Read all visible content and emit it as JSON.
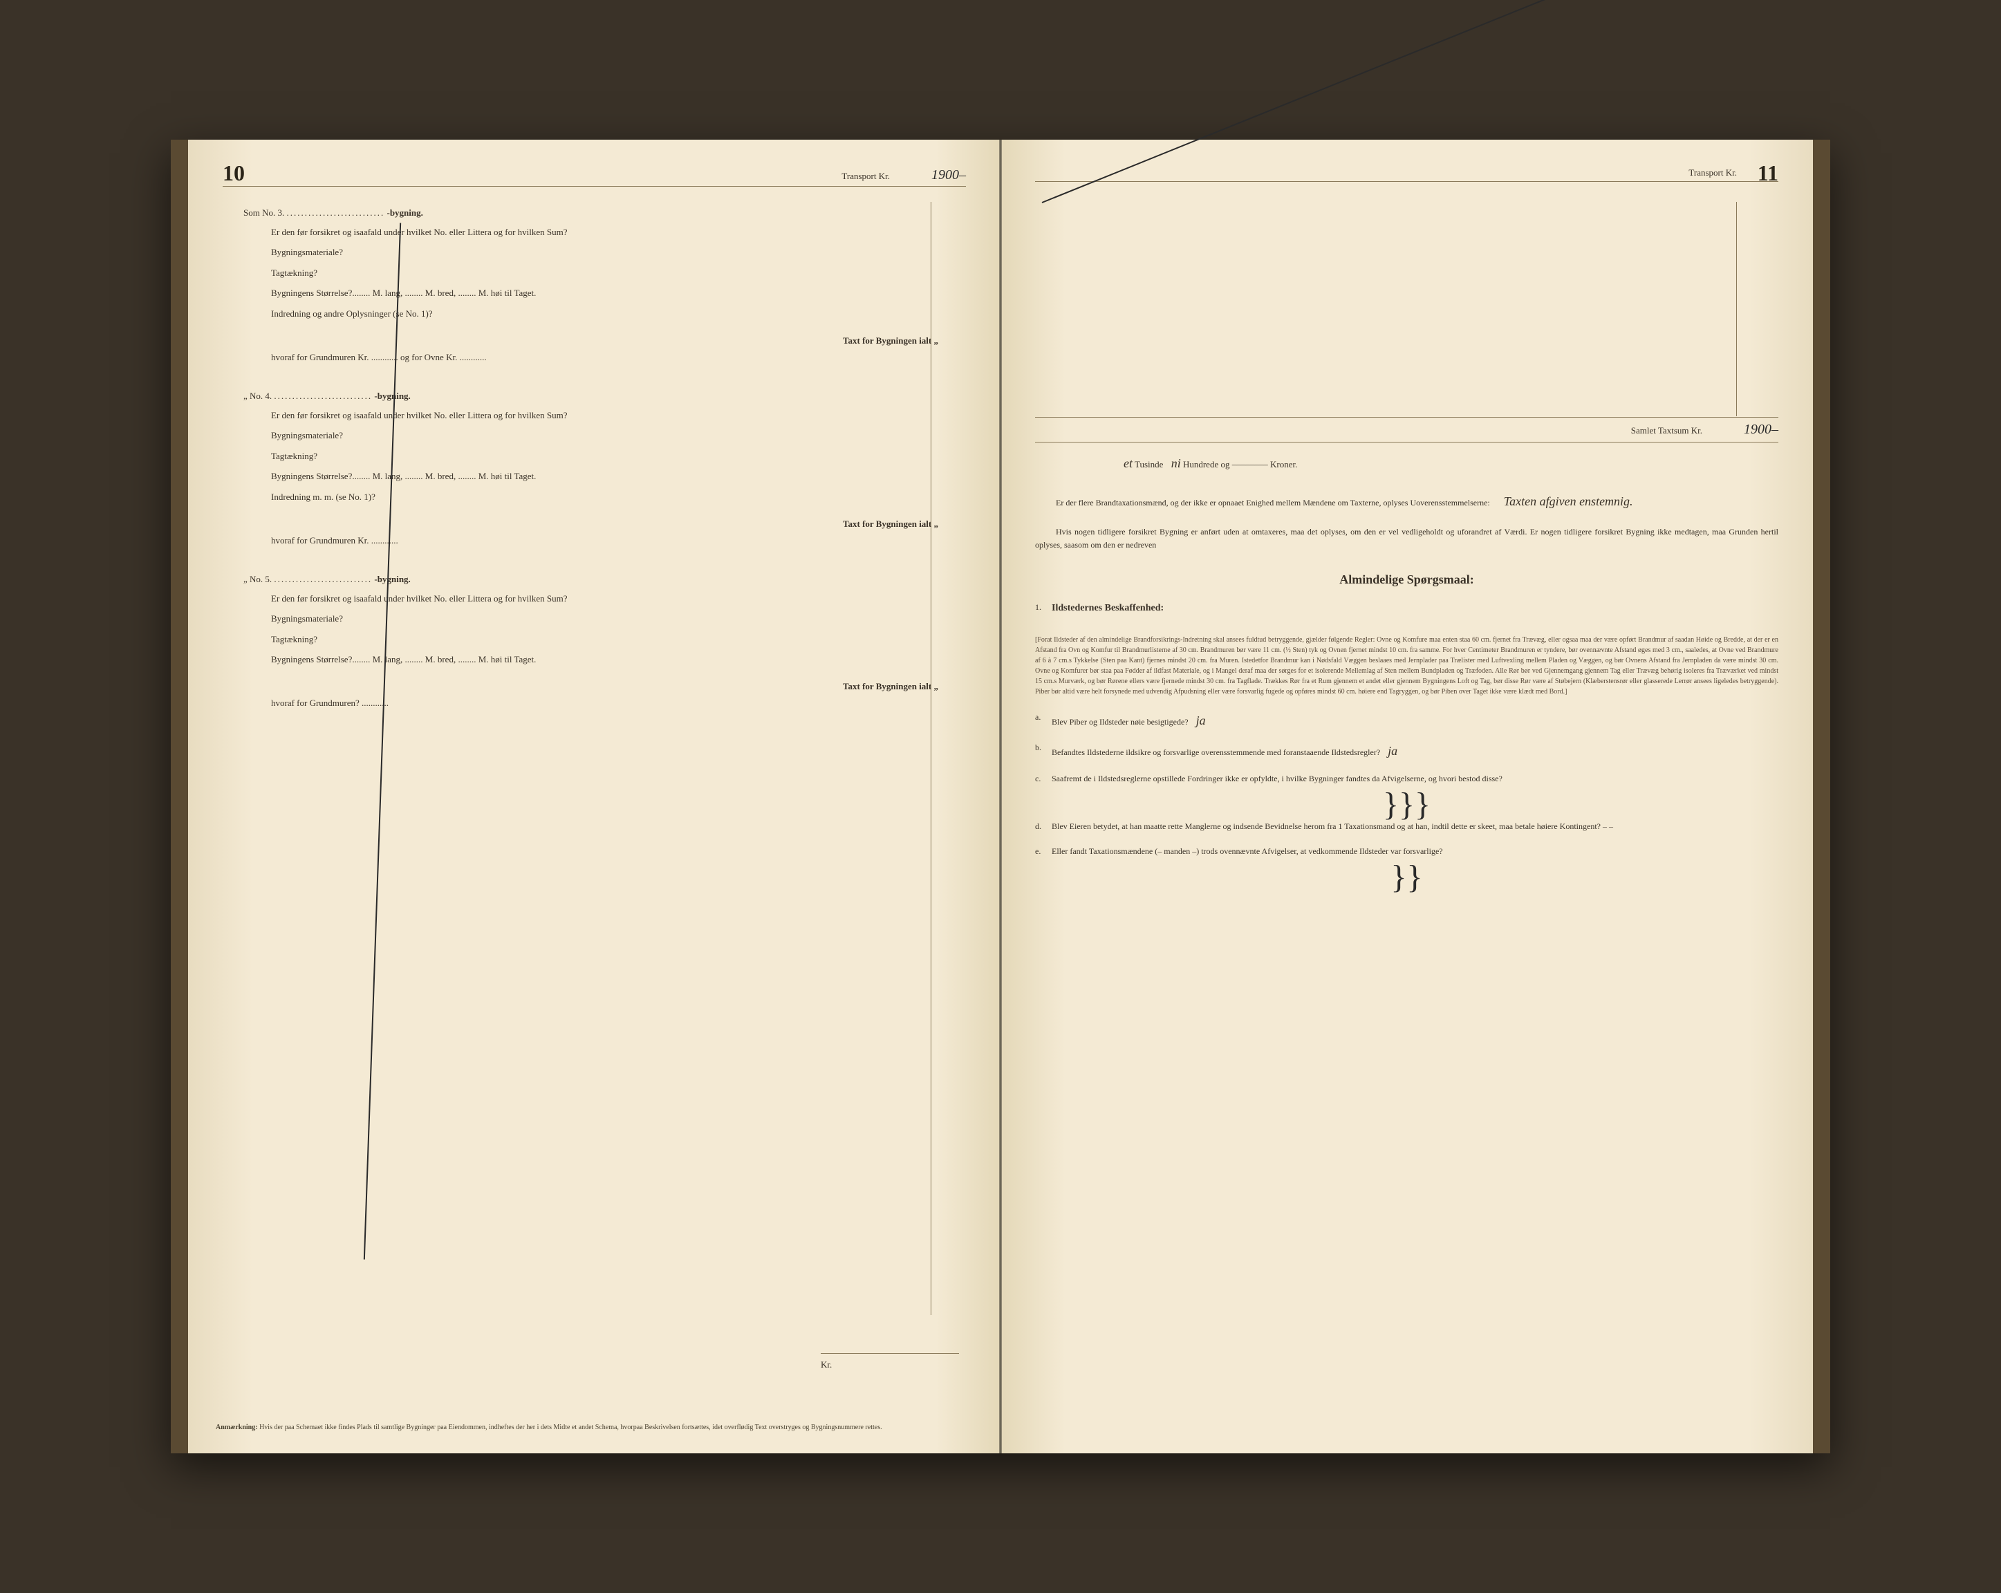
{
  "left": {
    "page_number": "10",
    "transport_label": "Transport Kr.",
    "transport_value": "1900–",
    "sec3": {
      "header_prefix": "Som No. 3.",
      "header_dots": "...........................",
      "header_suffix": "-bygning.",
      "q1": "Er den før forsikret og isaafald under hvilket No. eller Littera og for hvilken Sum?",
      "f1": "Bygningsmateriale?",
      "f2": "Tagtækning?",
      "f3": "Bygningens Størrelse?........ M. lang, ........ M. bred, ........ M. høi til Taget.",
      "f4": "Indredning og andre Oplysninger (se No. 1)?",
      "taxt": "Taxt for Bygningen ialt  „",
      "hvoraf": "hvoraf for Grundmuren Kr. ............ og for Ovne Kr. ............"
    },
    "sec4": {
      "header_prefix": "„   No. 4.",
      "header_dots": "...........................",
      "header_suffix": "-bygning.",
      "q1": "Er den før forsikret og isaafald under hvilket No. eller Littera og for hvilken Sum?",
      "f1": "Bygningsmateriale?",
      "f2": "Tagtækning?",
      "f3": "Bygningens Størrelse?........ M. lang, ........ M. bred, ........ M. høi til Taget.",
      "f4": "Indredning m. m. (se No. 1)?",
      "taxt": "Taxt for Bygningen ialt  „",
      "hvoraf": "hvoraf for Grundmuren Kr. ............"
    },
    "sec5": {
      "header_prefix": "„   No. 5.",
      "header_dots": "...........................",
      "header_suffix": "-bygning.",
      "q1": "Er den før forsikret og isaafald under hvilket No. eller Littera og for hvilken Sum?",
      "f1": "Bygningsmateriale?",
      "f2": "Tagtækning?",
      "f3": "Bygningens Størrelse?........ M. lang, ........ M. bred, ........ M. høi til Taget.",
      "taxt": "Taxt for Bygningen ialt  „",
      "hvoraf": "hvoraf for Grundmuren? ............"
    },
    "kr_label": "Kr.",
    "footnote_label": "Anmærkning:",
    "footnote_text": "Hvis der paa Schemaet ikke findes Plads til samtlige Bygninger paa Eiendommen, indheftes der her i dets Midte et andet Schema, hvorpaa Beskrivelsen fortsættes, idet overflødig Text overstryges og Bygningsnummere rettes."
  },
  "right": {
    "page_number": "11",
    "transport_label": "Transport Kr.",
    "samlet_label": "Samlet Taxtsum Kr.",
    "samlet_value": "1900–",
    "tusinde_prefix": "et",
    "tusinde_mid": "Tusinde",
    "tusinde_hw": "ni",
    "tusinde_suffix": "Hundrede og –––––––– Kroner.",
    "q_flere": "Er der flere Brandtaxationsmænd, og der ikke er opnaaet Enighed mellem Mændene om Taxterne, oplyses Uoverensstemmelserne:",
    "q_flere_hw": "Taxten afgiven enstemnig.",
    "q_tidligere": "Hvis nogen tidligere forsikret Bygning er anført uden at omtaxeres, maa det oplyses, om den er vel vedligeholdt og uforandret af Værdi. Er nogen tidligere forsikret Bygning ikke medtagen, maa Grunden hertil oplyses, saasom om den er nedreven",
    "heading": "Almindelige Spørgsmaal:",
    "sec1_num": "1.",
    "sec1_title": "Ildstedernes Beskaffenhed:",
    "regulations": "[Forat Ildsteder af den almindelige Brandforsikrings-Indretning skal ansees fuldtud betryggende, gjælder følgende Regler: Ovne og Komfure maa enten staa 60 cm. fjernet fra Trævæg, eller ogsaa maa der være opført Brandmur af saadan Høide og Bredde, at der er en Afstand fra Ovn og Komfur til Brandmurlisterne af 30 cm. Brandmuren bør være 11 cm. (½ Sten) tyk og Ovnen fjernet mindst 10 cm. fra samme. For hver Centimeter Brandmuren er tyndere, bør ovennævnte Afstand øges med 3 cm., saaledes, at Ovne ved Brandmure af 6 à 7 cm.s Tykkelse (Sten paa Kant) fjernes mindst 20 cm. fra Muren. Istedetfor Brandmur kan i Nødsfald Væggen beslaaes med Jernplader paa Trælister med Luftvexling mellem Pladen og Væggen, og bør Ovnens Afstand fra Jernpladen da være mindst 30 cm. Ovne og Komfurer bør staa paa Fødder af ildfast Materiale, og i Mangel deraf maa der sørges for et isolerende Mellemlag af Sten mellem Bundpladen og Træfoden. Alle Rør bør ved Gjennemgang gjennem Tag eller Trævæg behørig isoleres fra Træværket ved mindst 15 cm.s Murværk, og bør Rørene ellers være fjernede mindst 30 cm. fra Tagflade. Trækkes Rør fra et Rum gjennem et andet eller gjennem Bygningens Loft og Tag, bør disse Rør være af Støbejern (Klæberstensrør eller glasserede Lerrør ansees ligeledes betryggende). Piber bør altid være helt forsynede med udvendig Afpudsning eller være forsvarlig fugede og opføres mindst 60 cm. høiere end Tagryggen, og bør Piben over Taget ikke være klædt med Bord.]",
    "qa_label": "a.",
    "qa_text": "Blev Piber og Ildsteder nøie besigtigede?",
    "qa_hw": "ja",
    "qb_label": "b.",
    "qb_text": "Befandtes Ildstederne ildsikre og forsvarlige overensstemmende med foranstaaende Ildstedsregler?",
    "qb_hw": "ja",
    "qc_label": "c.",
    "qc_text": "Saafremt de i Ildstedsreglerne opstillede Fordringer ikke er opfyldte, i hvilke Bygninger fandtes da Afvigelserne, og hvori bestod disse?",
    "qc_scribble": "}}}",
    "qd_label": "d.",
    "qd_text": "Blev Eieren betydet, at han maatte rette Manglerne og indsende Bevidnelse herom fra 1 Taxationsmand og at han, indtil dette er skeet, maa betale høiere Kontingent? – –",
    "qe_label": "e.",
    "qe_text": "Eller fandt Taxationsmændene (– manden –) trods ovennævnte Afvigelser, at vedkommende Ildsteder var forsvarlige?",
    "qe_scribble": "}}"
  },
  "colors": {
    "page_bg": "#f4ead4",
    "text": "#3a3228",
    "rule": "#8a7a5a",
    "handwriting": "#2a2a2a",
    "binding": "#5a4a32"
  }
}
